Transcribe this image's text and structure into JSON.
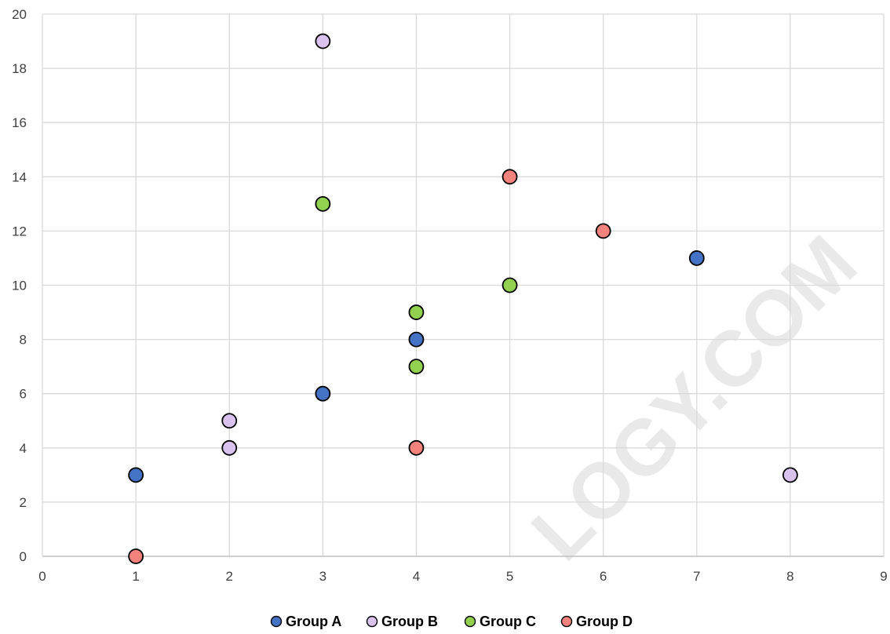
{
  "chart_data": {
    "type": "scatter",
    "title": "",
    "xlabel": "",
    "ylabel": "",
    "xlim": [
      0,
      9
    ],
    "ylim": [
      0,
      20
    ],
    "x_ticks": [
      "0",
      "1",
      "2",
      "3",
      "4",
      "5",
      "6",
      "7",
      "8",
      "9"
    ],
    "y_ticks": [
      "0",
      "2",
      "4",
      "6",
      "8",
      "10",
      "12",
      "14",
      "16",
      "18",
      "20"
    ],
    "grid": true,
    "legend_position": "bottom",
    "series": [
      {
        "name": "Group A",
        "color": "#4472c4",
        "points": [
          [
            1,
            3
          ],
          [
            3,
            6
          ],
          [
            4,
            8
          ],
          [
            7,
            11
          ]
        ]
      },
      {
        "name": "Group B",
        "color": "#d9c3ee",
        "points": [
          [
            2,
            4
          ],
          [
            2,
            5
          ],
          [
            3,
            19
          ],
          [
            8,
            3
          ]
        ]
      },
      {
        "name": "Group C",
        "color": "#92d050",
        "points": [
          [
            3,
            13
          ],
          [
            4,
            7
          ],
          [
            4,
            9
          ],
          [
            5,
            10
          ]
        ]
      },
      {
        "name": "Group D",
        "color": "#f4837d",
        "points": [
          [
            1,
            0
          ],
          [
            4,
            4
          ],
          [
            5,
            14
          ],
          [
            6,
            12
          ]
        ]
      }
    ]
  },
  "watermark": "LOGY.COM"
}
